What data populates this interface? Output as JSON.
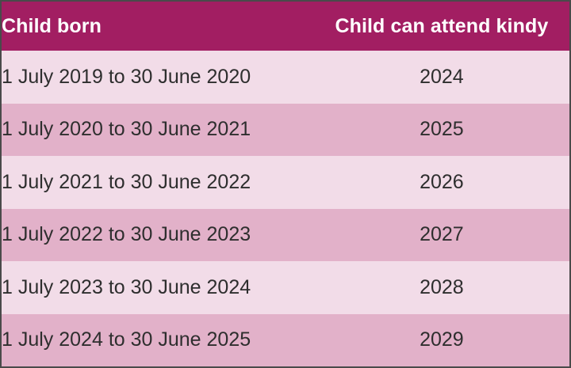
{
  "table": {
    "columns": [
      {
        "label": "Child born"
      },
      {
        "label": "Child can attend kindy"
      }
    ],
    "rows": [
      {
        "born": "1 July 2019 to 30 June 2020",
        "attend": "2024"
      },
      {
        "born": "1 July 2020 to 30 June 2021",
        "attend": "2025"
      },
      {
        "born": "1 July 2021 to 30 June 2022",
        "attend": "2026"
      },
      {
        "born": "1 July 2022 to 30 June 2023",
        "attend": "2027"
      },
      {
        "born": "1 July 2023 to 30 June 2024",
        "attend": "2028"
      },
      {
        "born": "1 July 2024 to 30 June 2025",
        "attend": "2029"
      }
    ],
    "colors": {
      "header_bg": "#a21e62",
      "header_text": "#ffffff",
      "row_light": "#f2dce8",
      "row_dark": "#e2b1c9",
      "body_text": "#2e2e2e",
      "border": "#4a4a4a"
    }
  }
}
